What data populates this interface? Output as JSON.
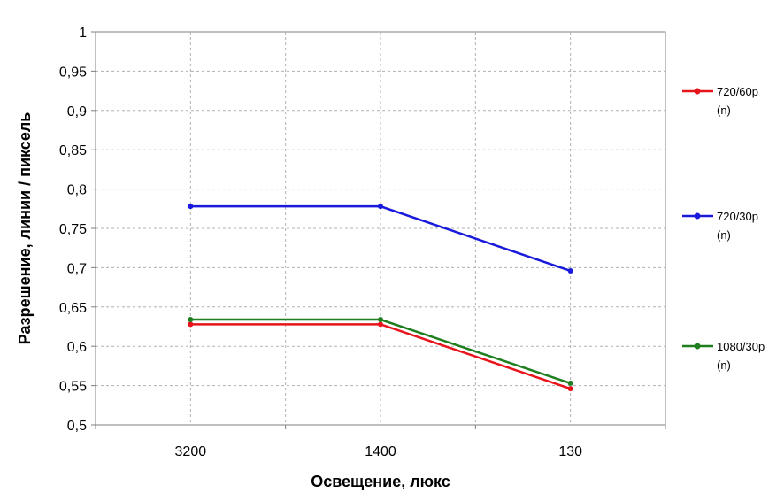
{
  "chart_data": {
    "type": "line",
    "categories": [
      "3200",
      "1400",
      "130"
    ],
    "xlabel": "Освещение, люкс",
    "ylabel": "Разрешение, линии / пиксель",
    "ylim": [
      0.5,
      1
    ],
    "yticks": [
      "0,5",
      "0,55",
      "0,6",
      "0,65",
      "0,7",
      "0,75",
      "0,8",
      "0,85",
      "0,9",
      "0,95",
      "1"
    ],
    "grid": true,
    "legend_position": "right",
    "series": [
      {
        "name": "720/60p",
        "name_sub": "(n)",
        "color": "#e8141c",
        "values": [
          0.628,
          0.628,
          0.546
        ]
      },
      {
        "name": "720/30p",
        "name_sub": "(n)",
        "color": "#1a1adc",
        "values": [
          0.778,
          0.778,
          0.696
        ]
      },
      {
        "name": "1080/30p",
        "name_sub": "(n)",
        "color": "#1f7f1f",
        "values": [
          0.634,
          0.634,
          0.553
        ]
      }
    ]
  }
}
